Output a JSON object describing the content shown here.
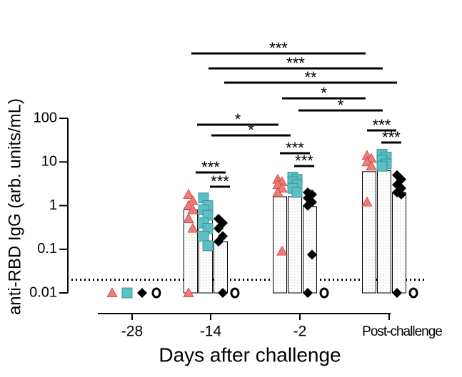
{
  "chart_data": {
    "type": "bar-scatter",
    "y_label": "anti-RBD IgG (arb. units/mL)",
    "x_label": "Days after challenge",
    "categories": [
      "-28",
      "-14",
      "-2",
      "Post-challenge"
    ],
    "y_log": true,
    "ylim": [
      0.01,
      100
    ],
    "yticks": [
      0.01,
      0.1,
      1,
      10,
      100
    ],
    "limit_of_detection": 0.02,
    "series": [
      {
        "color": "#f07b7b",
        "marker": "triangle",
        "values": [
          null,
          0.8,
          1.6,
          6
        ],
        "points": [
          [
            0.01
          ],
          [
            1.8,
            1.3,
            1.0,
            0.8,
            0.5,
            0.3,
            0.01
          ],
          [
            4,
            3.5,
            3,
            2.5,
            2,
            0.09
          ],
          [
            14,
            12,
            10,
            8,
            1.2
          ]
        ]
      },
      {
        "color": "#5bbfc4",
        "marker": "square",
        "values": [
          null,
          1,
          1.6,
          6.3
        ],
        "points": [
          [
            0.01
          ],
          [
            1.5,
            1.0,
            0.8,
            0.6,
            0.4,
            0.3,
            0.2,
            0.12
          ],
          [
            4.5,
            4,
            3.5,
            3,
            2.5,
            2
          ],
          [
            15,
            13,
            11,
            9,
            8
          ]
        ]
      },
      {
        "color": "#000000",
        "marker": "diamond",
        "values": [
          null,
          0.15,
          0.95,
          2
        ],
        "points": [
          [
            0.01
          ],
          [
            0.5,
            0.4,
            0.3,
            0.2,
            0.15,
            0.01
          ],
          [
            2,
            1.8,
            1.5,
            1.2,
            1,
            0.075,
            0.01
          ],
          [
            5,
            4,
            3,
            2.5,
            2,
            1.8,
            0.01
          ]
        ]
      },
      {
        "color": "#000000",
        "marker": "circle",
        "values": [
          null,
          null,
          null,
          null
        ],
        "points": [
          [
            0.01
          ],
          [
            0.01
          ],
          [
            0.01
          ],
          [
            0.01
          ]
        ]
      }
    ],
    "significance": [
      "***",
      "***",
      "**",
      "*",
      "*",
      "*",
      "*",
      "***",
      "***",
      "***",
      "***",
      "***",
      "***"
    ]
  }
}
